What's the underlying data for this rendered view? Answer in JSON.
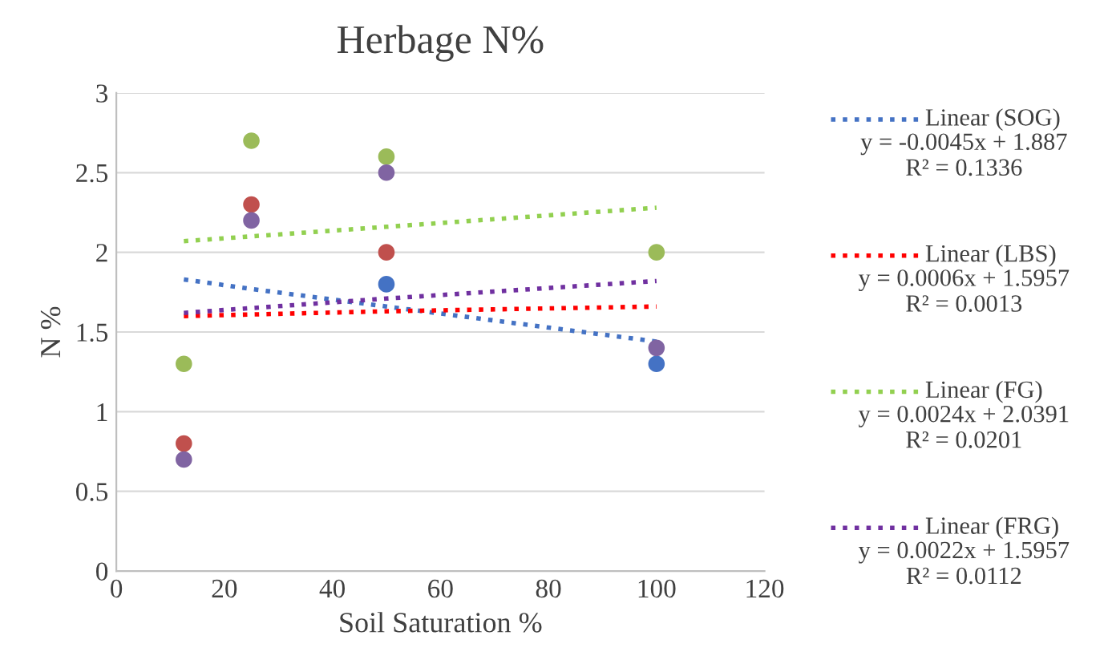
{
  "chart_data": {
    "type": "scatter",
    "title": "Herbage N%",
    "xlabel": "Soil Saturation %",
    "ylabel": "N %",
    "xlim": [
      0,
      120
    ],
    "xticks": [
      0,
      20,
      40,
      60,
      80,
      100,
      120
    ],
    "ylim": [
      0,
      3
    ],
    "yticks": [
      0,
      0.5,
      1,
      1.5,
      2,
      2.5,
      3
    ],
    "grid": "y",
    "marker": "circle",
    "legend": "right",
    "x": [
      12.5,
      25,
      50,
      100
    ],
    "series": [
      {
        "color": "#4472c4",
        "values": [
          null,
          null,
          1.8,
          1.3
        ]
      },
      {
        "color": "#c0504d",
        "values": [
          0.8,
          2.3,
          2.0,
          null
        ]
      },
      {
        "color": "#9bbb59",
        "values": [
          1.3,
          2.7,
          2.6,
          2.0
        ]
      },
      {
        "color": "#8064a2",
        "values": [
          0.7,
          2.2,
          2.5,
          1.4
        ]
      },
      {
        "type": "line",
        "name": "Linear (SOG)",
        "color": "#4472c4",
        "line_style": "dotted",
        "marker": "none",
        "values": [
          1.83,
          1.77,
          1.66,
          1.44
        ]
      },
      {
        "type": "line",
        "name": "Linear (LBS)",
        "color": "#ff0000",
        "line_style": "dotted",
        "marker": "none",
        "values": [
          1.6,
          1.61,
          1.63,
          1.66
        ]
      },
      {
        "type": "line",
        "name": "Linear (FG)",
        "color": "#92d050",
        "line_style": "dotted",
        "marker": "none",
        "values": [
          2.07,
          2.1,
          2.16,
          2.28
        ]
      },
      {
        "type": "line",
        "name": "Linear (FRG)",
        "color": "#7030a0",
        "line_style": "dotted",
        "marker": "none",
        "values": [
          1.62,
          1.65,
          1.71,
          1.82
        ]
      }
    ],
    "annotations": [
      "y = -0.0045x + 1.887\nR² = 0.1336",
      "y = 0.0006x + 1.5957\nR² = 0.0013",
      "y = 0.0024x + 2.0391\nR² = 0.0201",
      "y = 0.0022x + 1.5957\nR² = 0.0112"
    ]
  }
}
